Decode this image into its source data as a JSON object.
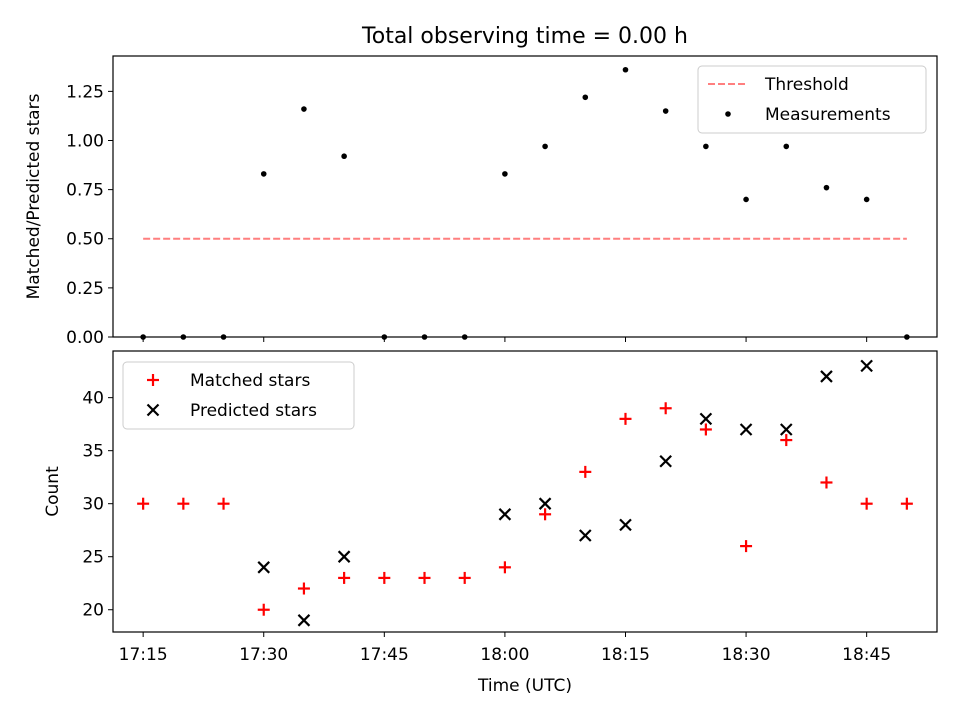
{
  "chart_data": [
    {
      "type": "scatter",
      "title": "Total observing time = 0.00 h",
      "xlabel": "",
      "ylabel": "Matched/Predicted stars",
      "ylim": [
        0,
        1.43
      ],
      "y_ticks": [
        "0.00",
        "0.25",
        "0.50",
        "0.75",
        "1.00",
        "1.25"
      ],
      "x_ticks_shown": false,
      "legend": "top-right",
      "threshold": {
        "name": "Threshold",
        "y": 0.5,
        "x_from": "17:15",
        "x_to": "18:50",
        "color": "#ff7f7f",
        "style": "dashed"
      },
      "series": [
        {
          "name": "Measurements",
          "marker": "dot",
          "color": "#000000",
          "x": [
            "17:15",
            "17:20",
            "17:25",
            "17:30",
            "17:35",
            "17:40",
            "17:45",
            "17:50",
            "17:55",
            "18:00",
            "18:05",
            "18:10",
            "18:15",
            "18:20",
            "18:25",
            "18:30",
            "18:35",
            "18:40",
            "18:45",
            "18:50"
          ],
          "y": [
            0.0,
            0.0,
            0.0,
            0.83,
            1.16,
            0.92,
            0.0,
            0.0,
            0.0,
            0.83,
            0.97,
            1.22,
            1.36,
            1.15,
            0.97,
            0.7,
            0.97,
            0.76,
            0.7,
            0.0
          ]
        }
      ]
    },
    {
      "type": "scatter",
      "title": "",
      "xlabel": "Time (UTC)",
      "ylabel": "Count",
      "ylim": [
        17.9,
        44.4
      ],
      "y_ticks": [
        "20",
        "25",
        "30",
        "35",
        "40"
      ],
      "x_ticks": [
        "17:15",
        "17:30",
        "17:45",
        "18:00",
        "18:15",
        "18:30",
        "18:45"
      ],
      "legend": "top-left",
      "series": [
        {
          "name": "Matched stars",
          "marker": "plus",
          "color": "#ff0000",
          "x": [
            "17:15",
            "17:20",
            "17:25",
            "17:30",
            "17:35",
            "17:40",
            "17:45",
            "17:50",
            "17:55",
            "18:00",
            "18:05",
            "18:10",
            "18:15",
            "18:20",
            "18:25",
            "18:30",
            "18:35",
            "18:40",
            "18:45",
            "18:50"
          ],
          "y": [
            30,
            30,
            30,
            20,
            22,
            23,
            23,
            23,
            23,
            24,
            29,
            33,
            38,
            39,
            37,
            26,
            36,
            32,
            30,
            30
          ]
        },
        {
          "name": "Predicted stars",
          "marker": "x",
          "color": "#000000",
          "x": [
            "17:30",
            "17:35",
            "17:40",
            "18:00",
            "18:05",
            "18:10",
            "18:15",
            "18:20",
            "18:25",
            "18:30",
            "18:35",
            "18:40",
            "18:45"
          ],
          "y": [
            24,
            19,
            25,
            29,
            30,
            27,
            28,
            34,
            38,
            37,
            37,
            42,
            43
          ]
        }
      ]
    }
  ]
}
